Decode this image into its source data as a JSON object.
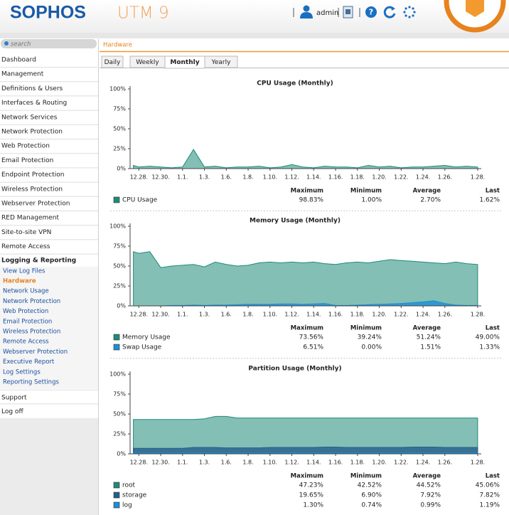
{
  "header": {
    "logo": "SOPHOS",
    "product": "UTM 9",
    "user": "admin"
  },
  "sidebar": {
    "search": "search",
    "items": [
      "Dashboard",
      "Management",
      "Definitions & Users",
      "Interfaces & Routing",
      "Network Services",
      "Network Protection",
      "Web Protection",
      "Email Protection",
      "Endpoint Protection",
      "Wireless Protection",
      "Webserver Protection",
      "RED Management",
      "Site-to-site VPN",
      "Remote Access"
    ],
    "section": "Logging & Reporting",
    "subitems": [
      "View Log Files",
      "Hardware",
      "Network Usage",
      "Network Protection",
      "Web Protection",
      "Email Protection",
      "Wireless Protection",
      "Remote Access",
      "Webserver Protection",
      "Executive Report",
      "Log Settings",
      "Reporting Settings"
    ],
    "active_subitem": 1,
    "after": [
      "Support",
      "Log off"
    ]
  },
  "breadcrumb": "Hardware",
  "tabs": [
    "Daily",
    "Weekly",
    "Monthly",
    "Yearly"
  ],
  "active_tab": 2,
  "stats_columns": [
    "Maximum",
    "Minimum",
    "Average",
    "Last"
  ],
  "chart_data": [
    {
      "type": "area",
      "title": "CPU Usage (Monthly)",
      "x": [
        -0.5,
        0,
        1,
        2,
        3,
        4,
        5,
        6,
        7,
        8,
        9,
        10,
        11,
        12,
        13,
        14,
        15,
        16,
        17,
        18,
        19,
        20,
        21,
        22,
        23,
        24,
        25,
        26,
        27,
        28,
        29,
        30,
        31
      ],
      "xlim": [
        -0.8,
        31.2
      ],
      "xticks": [
        {
          "value": 0,
          "label": "12.28."
        },
        {
          "value": 2,
          "label": "12.30."
        },
        {
          "value": 4,
          "label": "1.1."
        },
        {
          "value": 6,
          "label": "1.3."
        },
        {
          "value": 8,
          "label": "1.6."
        },
        {
          "value": 10,
          "label": "1.8."
        },
        {
          "value": 12,
          "label": "1.10."
        },
        {
          "value": 14,
          "label": "1.12."
        },
        {
          "value": 16,
          "label": "1.14."
        },
        {
          "value": 18,
          "label": "1.16."
        },
        {
          "value": 20,
          "label": "1.18."
        },
        {
          "value": 22,
          "label": "1.20."
        },
        {
          "value": 24,
          "label": "1.22."
        },
        {
          "value": 26,
          "label": "1.24."
        },
        {
          "value": 28,
          "label": "1.26."
        },
        {
          "value": 31,
          "label": "1.28."
        }
      ],
      "ylim": [
        0,
        100
      ],
      "yticks": [
        {
          "value": 0,
          "label": "0%"
        },
        {
          "value": 25,
          "label": "25%"
        },
        {
          "value": 50,
          "label": "50%"
        },
        {
          "value": 75,
          "label": "75%"
        },
        {
          "value": 100,
          "label": "100%"
        }
      ],
      "series": [
        {
          "name": "CPU Usage",
          "color": "#1f8a78",
          "values": [
            4,
            2,
            3,
            2,
            1,
            2,
            24,
            2,
            3,
            1,
            2,
            2,
            3,
            1,
            2,
            5,
            2,
            1,
            3,
            2,
            2,
            1,
            4,
            2,
            3,
            1,
            2,
            2,
            3,
            4,
            2,
            3,
            2
          ],
          "stats": [
            "98.83%",
            "1.00%",
            "2.70%",
            "1.62%"
          ]
        }
      ]
    },
    {
      "type": "area",
      "title": "Memory Usage (Monthly)",
      "x": [
        -0.5,
        0,
        1,
        2,
        3,
        4,
        5,
        6,
        7,
        8,
        9,
        10,
        11,
        12,
        13,
        14,
        15,
        16,
        17,
        18,
        19,
        20,
        21,
        22,
        23,
        24,
        25,
        26,
        27,
        28,
        29,
        30,
        31
      ],
      "xlim": [
        -0.8,
        31.2
      ],
      "xticks": [
        {
          "value": 0,
          "label": "12.28."
        },
        {
          "value": 2,
          "label": "12.30."
        },
        {
          "value": 4,
          "label": "1.1."
        },
        {
          "value": 6,
          "label": "1.3."
        },
        {
          "value": 8,
          "label": "1.6."
        },
        {
          "value": 10,
          "label": "1.8."
        },
        {
          "value": 12,
          "label": "1.10."
        },
        {
          "value": 14,
          "label": "1.12."
        },
        {
          "value": 16,
          "label": "1.14."
        },
        {
          "value": 18,
          "label": "1.16."
        },
        {
          "value": 20,
          "label": "1.18."
        },
        {
          "value": 22,
          "label": "1.20."
        },
        {
          "value": 24,
          "label": "1.22."
        },
        {
          "value": 26,
          "label": "1.24."
        },
        {
          "value": 28,
          "label": "1.26."
        },
        {
          "value": 31,
          "label": "1.28."
        }
      ],
      "ylim": [
        0,
        100
      ],
      "yticks": [
        {
          "value": 0,
          "label": "0%"
        },
        {
          "value": 25,
          "label": "25%"
        },
        {
          "value": 50,
          "label": "50%"
        },
        {
          "value": 75,
          "label": "75%"
        },
        {
          "value": 100,
          "label": "100%"
        }
      ],
      "series": [
        {
          "name": "Memory Usage",
          "color": "#1f8a78",
          "values": [
            68,
            66,
            68,
            48,
            50,
            51,
            52,
            49,
            55,
            52,
            50,
            51,
            54,
            55,
            54,
            55,
            54,
            55,
            53,
            52,
            54,
            55,
            54,
            56,
            58,
            57,
            56,
            55,
            54,
            53,
            55,
            53,
            52
          ],
          "stats": [
            "73.56%",
            "39.24%",
            "51.24%",
            "49.00%"
          ]
        },
        {
          "name": "Swap Usage",
          "color": "#1c8fd6",
          "values": [
            0,
            0,
            0,
            0,
            0.5,
            0.5,
            1,
            0.5,
            1,
            1,
            1.5,
            2,
            2,
            2,
            2.5,
            2.5,
            2,
            2.5,
            3,
            0.5,
            0.5,
            1,
            1.5,
            2,
            2.5,
            3,
            4,
            5,
            6.5,
            3,
            1,
            0.5,
            0.5
          ],
          "stats": [
            "6.51%",
            "0.00%",
            "1.51%",
            "1.33%"
          ]
        }
      ]
    },
    {
      "type": "area",
      "title": "Partition Usage (Monthly)",
      "x": [
        -0.5,
        0,
        1,
        2,
        3,
        4,
        5,
        6,
        7,
        8,
        9,
        10,
        11,
        12,
        13,
        14,
        15,
        16,
        17,
        18,
        19,
        20,
        21,
        22,
        23,
        24,
        25,
        26,
        27,
        28,
        29,
        30,
        31
      ],
      "xlim": [
        -0.8,
        31.2
      ],
      "xticks": [
        {
          "value": 0,
          "label": "12.28."
        },
        {
          "value": 2,
          "label": "12.30."
        },
        {
          "value": 4,
          "label": "1.1."
        },
        {
          "value": 6,
          "label": "1.3."
        },
        {
          "value": 8,
          "label": "1.6."
        },
        {
          "value": 10,
          "label": "1.8."
        },
        {
          "value": 12,
          "label": "1.10."
        },
        {
          "value": 14,
          "label": "1.12."
        },
        {
          "value": 16,
          "label": "1.14."
        },
        {
          "value": 18,
          "label": "1.16."
        },
        {
          "value": 20,
          "label": "1.18."
        },
        {
          "value": 22,
          "label": "1.20."
        },
        {
          "value": 24,
          "label": "1.22."
        },
        {
          "value": 26,
          "label": "1.24."
        },
        {
          "value": 28,
          "label": "1.26."
        },
        {
          "value": 31,
          "label": "1.28."
        }
      ],
      "ylim": [
        0,
        100
      ],
      "yticks": [
        {
          "value": 0,
          "label": "0%"
        },
        {
          "value": 25,
          "label": "25%"
        },
        {
          "value": 50,
          "label": "50%"
        },
        {
          "value": 75,
          "label": "75%"
        },
        {
          "value": 100,
          "label": "100%"
        }
      ],
      "series": [
        {
          "name": "root",
          "color": "#1f8a78",
          "values": [
            43,
            43,
            43,
            43,
            43,
            43,
            43,
            44,
            47,
            47,
            45,
            45,
            45,
            45,
            45,
            45,
            45,
            45,
            45,
            45,
            45,
            45,
            45,
            45,
            45,
            45,
            45,
            45,
            45,
            45,
            45,
            45,
            45
          ],
          "stats": [
            "47.23%",
            "42.52%",
            "44.52%",
            "45.06%"
          ]
        },
        {
          "name": "storage",
          "color": "#245f8c",
          "values": [
            7,
            7,
            7,
            7,
            7,
            7,
            8,
            8,
            8,
            7.5,
            7.5,
            7.5,
            7.5,
            8,
            8,
            8,
            8,
            8,
            8.5,
            8.5,
            8,
            8,
            8,
            8,
            8,
            8,
            8.5,
            8.5,
            8.5,
            8,
            8,
            8,
            8
          ],
          "stats": [
            "19.65%",
            "6.90%",
            "7.92%",
            "7.82%"
          ]
        },
        {
          "name": "log",
          "color": "#1c8fd6",
          "values": [
            1,
            1,
            0.8,
            1,
            1,
            1,
            1.2,
            1,
            1,
            1,
            1,
            1,
            1,
            1,
            1,
            1.3,
            1,
            1,
            1,
            1,
            1,
            1,
            1,
            1,
            1,
            1,
            1.2,
            1,
            1,
            1,
            1,
            1,
            1
          ],
          "stats": [
            "1.30%",
            "0.74%",
            "0.99%",
            "1.19%"
          ]
        }
      ]
    }
  ]
}
